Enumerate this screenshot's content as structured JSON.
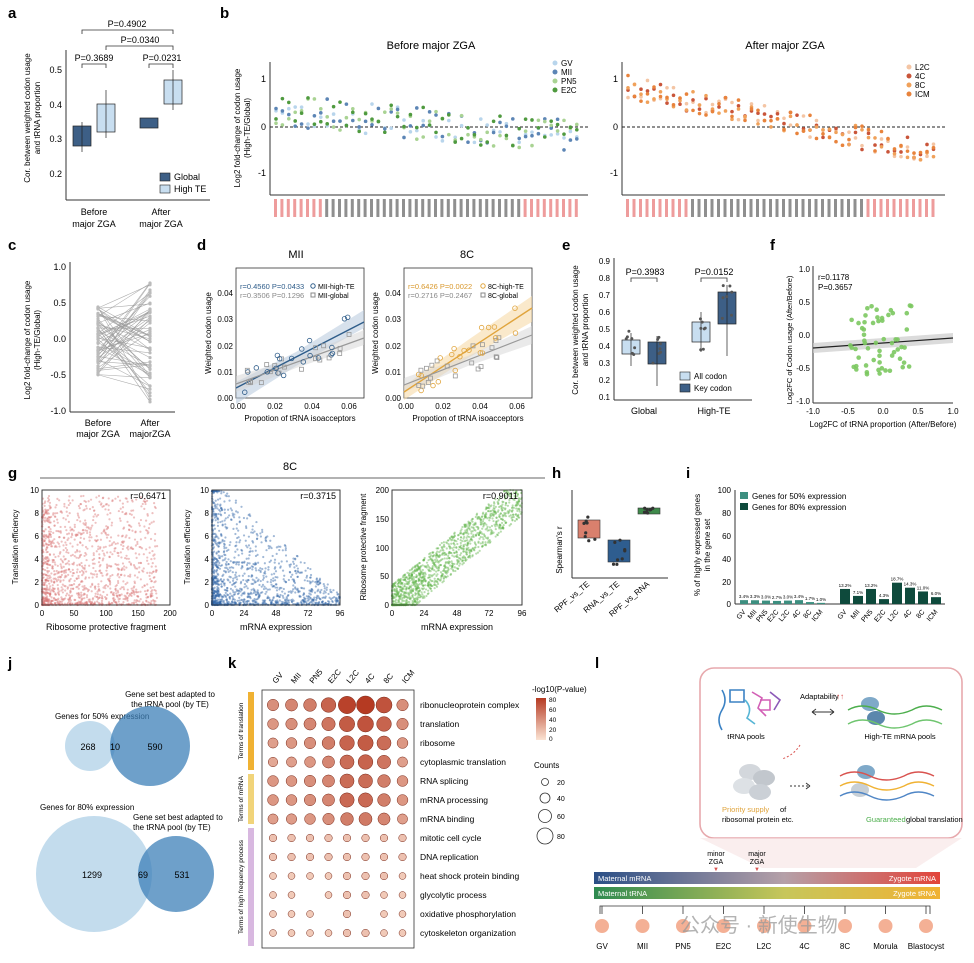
{
  "panels": {
    "a": {
      "letter": "a",
      "ylabel1": "Cor. between weighted codon usage",
      "ylabel2": "and tRNA proportion",
      "p_top": "P=0.4902",
      "p_mid": "P=0.0340",
      "p_left": "P=0.3689",
      "p_right": "P=0.0231",
      "xcat1a": "Before",
      "xcat1b": "major ZGA",
      "xcat2a": "After",
      "xcat2b": "major ZGA",
      "legend_global": "Global",
      "legend_hightm": "High TE",
      "yticks": [
        "0.2",
        "0.3",
        "0.4",
        "0.5"
      ]
    },
    "b": {
      "letter": "b",
      "title_left": "Before major ZGA",
      "title_right": "After major ZGA",
      "ylabel": "Log2 fold-change of codon usage",
      "ylabel2": "(High-TE/Global)",
      "legend_left": [
        "GV",
        "MII",
        "PN5",
        "E2C"
      ],
      "legend_right": [
        "L2C",
        "4C",
        "8C",
        "ICM"
      ],
      "yticks": [
        "1",
        "0",
        "-1"
      ]
    },
    "c": {
      "letter": "c",
      "ylabel": "Log2 fold-change of codon usage",
      "ylabel2": "(High-TE/Global)",
      "xcat1a": "Before",
      "xcat1b": "major ZGA",
      "xcat2a": "After",
      "xcat2b": "majorZGA",
      "yticks": [
        "1.0",
        "0.5",
        "0.0",
        "-0.5",
        "-1.0"
      ]
    },
    "d": {
      "letter": "d",
      "title_left": "MII",
      "title_right": "8C",
      "ylabel": "Weighted codon usage",
      "xlabel": "Propotion of tRNA isoacceptors",
      "stat_l1": "r=0.4560 P=0.0433",
      "stat_l2": "r=0.3506 P=0.1296",
      "legend_l1": "MII-high-TE",
      "legend_l2": "MII-global",
      "stat_r1": "r=0.6426 P=0.0022",
      "stat_r2": "r=0.2716 P=0.2467",
      "legend_r1": "8C-high-TE",
      "legend_r2": "8C-global",
      "yticks": [
        "0.04",
        "0.03",
        "0.02",
        "0.01",
        "0.00"
      ],
      "xticks": [
        "0.00",
        "0.02",
        "0.04",
        "0.06"
      ]
    },
    "e": {
      "letter": "e",
      "ylabel1": "Cor. between weighted codon usage",
      "ylabel2": "and tRNA proportion",
      "p_left": "P=0.3983",
      "p_right": "P=0.0152",
      "xcat1": "Global",
      "xcat2": "High-TE",
      "legend_all": "All codon",
      "legend_key": "Key codon",
      "yticks": [
        "0.9",
        "0.8",
        "0.7",
        "0.6",
        "0.5",
        "0.4",
        "0.3",
        "0.2",
        "0.1"
      ]
    },
    "f": {
      "letter": "f",
      "stat1": "r=0.1178",
      "stat2": "P=0.3657",
      "ylabel": "Log2FC of Codon usage (After/Before)",
      "xlabel": "Log2FC of tRNA proportion (After/Before)",
      "yticks": [
        "1.0",
        "0.5",
        "0.0",
        "-0.5",
        "-1.0"
      ],
      "xticks": [
        "-1.0",
        "-0.5",
        "0.0",
        "0.5",
        "1.0"
      ]
    },
    "g": {
      "letter": "g",
      "title": "8C",
      "r1": "r=0.6471",
      "r2": "r=0.3715",
      "r3": "r=0.9011",
      "ylabel1": "Translation efficiency",
      "xlabel1": "Ribosome protective fragment",
      "ylabel2": "Translation efficiency",
      "xlabel2": "mRNA expression",
      "ylabel3": "Ribosome protective fragment",
      "xlabel3": "mRNA expression",
      "yticks1": [
        "10",
        "8",
        "6",
        "4",
        "2",
        "0"
      ],
      "xticks1": [
        "0",
        "50",
        "100",
        "150",
        "200"
      ],
      "xticks2": [
        "0",
        "24",
        "48",
        "72",
        "96"
      ],
      "yticks3": [
        "200",
        "150",
        "100",
        "50",
        "0"
      ]
    },
    "h": {
      "letter": "h",
      "ylabel": "Spearman's r",
      "cats": [
        "RPF_vs_TE",
        "RNA_vs_TE",
        "RPF_vs_RNA"
      ]
    },
    "i": {
      "letter": "i",
      "ylabel1": "% of highly expressed genes",
      "ylabel2": "in the gene set",
      "legend50": "Genes for 50% expression",
      "legend80": "Genes for 80% expression",
      "yticks": [
        "100",
        "80",
        "60",
        "40",
        "20",
        "0"
      ],
      "cats50": [
        "GV",
        "MII",
        "PN5",
        "E2C",
        "L2C",
        "4C",
        "8C",
        "ICM"
      ],
      "cats80": [
        "GV",
        "MII",
        "PN5",
        "E2C",
        "L2C",
        "4C",
        "8C",
        "ICM"
      ],
      "labels50": [
        "3.4%",
        "3.3%",
        "3.0%",
        "2.7%",
        "3.0%",
        "3.4%",
        "1.7%",
        "1.0%"
      ],
      "labels80": [
        "13.2%",
        "7.1%",
        "13.2%",
        "4.3%",
        "18.7%",
        "14.3%",
        "11.0%",
        "6.0%"
      ]
    },
    "j": {
      "letter": "j",
      "set_top_a": "Gene set best adapted to",
      "set_top_b": "the tRNA pool (by TE)",
      "genes50": "Genes for 50% expression",
      "n_268": "268",
      "n_10": "10",
      "n_590": "590",
      "genes80": "Genes for 80% expression",
      "set_bot_a": "Gene set best adapted to",
      "set_bot_b": "the tRNA pool (by TE)",
      "n_1299": "1299",
      "n_69": "69",
      "n_531": "531"
    },
    "k": {
      "letter": "k",
      "cols": [
        "GV",
        "MII",
        "PN5",
        "E2C",
        "L2C",
        "4C",
        "8C",
        "ICM"
      ],
      "rows": [
        "ribonucleoprotein complex",
        "translation",
        "ribosome",
        "cytoplasmic translation",
        "RNA splicing",
        "mRNA processing",
        "mRNA binding",
        "mitotic cell cycle",
        "DNA replication",
        "heat shock protein binding",
        "glycolytic process",
        "oxidative phosphorylation",
        "cytoskeleton organization"
      ],
      "group1": "Terms of translation",
      "group2": "Terms of mRNA",
      "group3": "Terms of high frequency process",
      "colorbar_title": "-log10(P-value)",
      "colorbar_ticks": [
        "80",
        "60",
        "40",
        "20",
        "0"
      ],
      "counts_title": "Counts",
      "counts_ticks": [
        "20",
        "40",
        "60",
        "80"
      ]
    },
    "l": {
      "letter": "l",
      "trna_pools": "tRNA pools",
      "adaptability": "Adaptability",
      "hightm_pools": "High-TE mRNA pools",
      "priority_a": "Priority supply",
      "priority_b": "of",
      "priority_c": "ribosomal protein etc.",
      "guaranteed_a": "Guaranteed",
      "guaranteed_b": "global translation",
      "minor": "minor",
      "minor2": "ZGA",
      "major": "major",
      "major2": "ZGA",
      "maternal_mrna": "Maternal mRNA",
      "zygote_mrna": "Zygote mRNA",
      "maternal_trna": "Maternal tRNA",
      "zygote_trna": "Zygote tRNA",
      "stages": [
        "GV",
        "MII",
        "PN5",
        "E2C",
        "L2C",
        "4C",
        "8C",
        "Morula",
        "Blastocyst"
      ]
    },
    "watermark": "公众号 · 新使生物"
  },
  "colors": {
    "global": "#3d5f86",
    "hightm": "#c8def0",
    "mii_blue": "#2f5d8a",
    "orange": "#e0a43c",
    "red_scatter": "#d97575",
    "blue_scatter": "#2e64a6",
    "green_scatter": "#5fb44a",
    "teal_dark": "#0e4a3c"
  }
}
